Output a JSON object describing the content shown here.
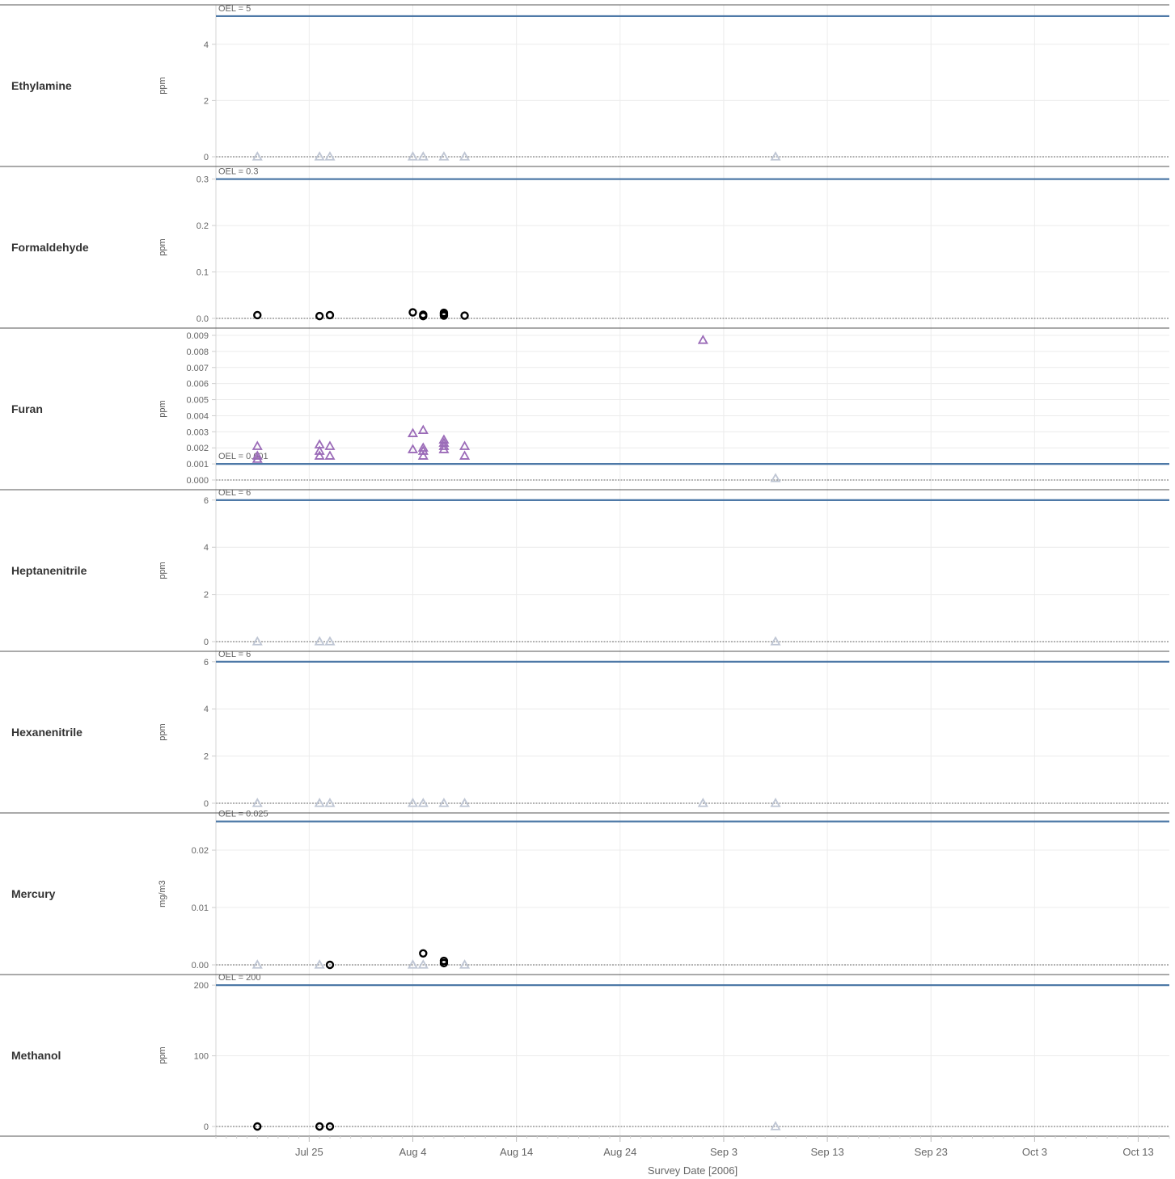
{
  "chart_data": {
    "type": "scatter",
    "xlabel": "Survey Date [2006]",
    "x_ticks": [
      "Jul 25",
      "Aug 4",
      "Aug 14",
      "Aug 24",
      "Sep 3",
      "Sep 13",
      "Sep 23",
      "Oct 3",
      "Oct 13"
    ],
    "xlim": [
      "2006-07-16",
      "2006-10-16"
    ],
    "grid": true,
    "colors": {
      "oel_line": "#4e79a7",
      "detect_circle": "#000000",
      "nondetect_triangle": "#bfc6d4",
      "exceed_triangle": "#9b6bb8"
    },
    "panels": [
      {
        "chemical": "Ethylamine",
        "unit": "ppm",
        "oel": 5,
        "oel_label": "OEL = 5",
        "ylim": [
          0,
          5.2
        ],
        "y_ticks": [
          "0",
          "2",
          "4"
        ],
        "y_tick_values": [
          0,
          2,
          4
        ],
        "points": [
          {
            "date": "2006-07-20",
            "value": 0,
            "marker": "nondetect"
          },
          {
            "date": "2006-07-26",
            "value": 0,
            "marker": "nondetect"
          },
          {
            "date": "2006-07-27",
            "value": 0,
            "marker": "nondetect"
          },
          {
            "date": "2006-08-04",
            "value": 0,
            "marker": "nondetect"
          },
          {
            "date": "2006-08-05",
            "value": 0,
            "marker": "nondetect"
          },
          {
            "date": "2006-08-07",
            "value": 0,
            "marker": "nondetect"
          },
          {
            "date": "2006-08-09",
            "value": 0,
            "marker": "nondetect"
          },
          {
            "date": "2006-09-08",
            "value": 0,
            "marker": "nondetect"
          }
        ]
      },
      {
        "chemical": "Formaldehyde",
        "unit": "ppm",
        "oel": 0.3,
        "oel_label": "OEL = 0.3",
        "ylim": [
          0,
          0.315
        ],
        "y_ticks": [
          "0.0",
          "0.1",
          "0.2",
          "0.3"
        ],
        "y_tick_values": [
          0,
          0.1,
          0.2,
          0.3
        ],
        "points": [
          {
            "date": "2006-07-20",
            "value": 0.007,
            "marker": "detect"
          },
          {
            "date": "2006-07-26",
            "value": 0.005,
            "marker": "detect"
          },
          {
            "date": "2006-07-27",
            "value": 0.007,
            "marker": "detect"
          },
          {
            "date": "2006-08-04",
            "value": 0.013,
            "marker": "detect"
          },
          {
            "date": "2006-08-05",
            "value": 0.008,
            "marker": "detect"
          },
          {
            "date": "2006-08-05",
            "value": 0.005,
            "marker": "detect"
          },
          {
            "date": "2006-08-07",
            "value": 0.012,
            "marker": "detect"
          },
          {
            "date": "2006-08-07",
            "value": 0.009,
            "marker": "detect"
          },
          {
            "date": "2006-08-07",
            "value": 0.006,
            "marker": "detect"
          },
          {
            "date": "2006-08-09",
            "value": 0.006,
            "marker": "detect"
          }
        ]
      },
      {
        "chemical": "Furan",
        "unit": "ppm",
        "oel": 0.001,
        "oel_label": "OEL = 0.001",
        "ylim": [
          0,
          0.0091
        ],
        "y_ticks": [
          "0.000",
          "0.001",
          "0.002",
          "0.003",
          "0.004",
          "0.005",
          "0.006",
          "0.007",
          "0.008",
          "0.009"
        ],
        "y_tick_values": [
          0,
          0.001,
          0.002,
          0.003,
          0.004,
          0.005,
          0.006,
          0.007,
          0.008,
          0.009
        ],
        "points": [
          {
            "date": "2006-07-20",
            "value": 0.0021,
            "marker": "exceed"
          },
          {
            "date": "2006-07-20",
            "value": 0.0015,
            "marker": "exceed"
          },
          {
            "date": "2006-07-20",
            "value": 0.0013,
            "marker": "exceed"
          },
          {
            "date": "2006-07-26",
            "value": 0.0022,
            "marker": "exceed"
          },
          {
            "date": "2006-07-26",
            "value": 0.0018,
            "marker": "exceed"
          },
          {
            "date": "2006-07-26",
            "value": 0.0015,
            "marker": "exceed"
          },
          {
            "date": "2006-07-27",
            "value": 0.0021,
            "marker": "exceed"
          },
          {
            "date": "2006-07-27",
            "value": 0.0015,
            "marker": "exceed"
          },
          {
            "date": "2006-08-04",
            "value": 0.0029,
            "marker": "exceed"
          },
          {
            "date": "2006-08-04",
            "value": 0.0019,
            "marker": "exceed"
          },
          {
            "date": "2006-08-05",
            "value": 0.0031,
            "marker": "exceed"
          },
          {
            "date": "2006-08-05",
            "value": 0.002,
            "marker": "exceed"
          },
          {
            "date": "2006-08-05",
            "value": 0.0018,
            "marker": "exceed"
          },
          {
            "date": "2006-08-05",
            "value": 0.0015,
            "marker": "exceed"
          },
          {
            "date": "2006-08-07",
            "value": 0.0025,
            "marker": "exceed"
          },
          {
            "date": "2006-08-07",
            "value": 0.0023,
            "marker": "exceed"
          },
          {
            "date": "2006-08-07",
            "value": 0.0021,
            "marker": "exceed"
          },
          {
            "date": "2006-08-07",
            "value": 0.0019,
            "marker": "exceed"
          },
          {
            "date": "2006-08-09",
            "value": 0.0021,
            "marker": "exceed"
          },
          {
            "date": "2006-08-09",
            "value": 0.0015,
            "marker": "exceed"
          },
          {
            "date": "2006-09-01",
            "value": 0.0087,
            "marker": "exceed"
          },
          {
            "date": "2006-09-08",
            "value": 0.0001,
            "marker": "nondetect"
          }
        ]
      },
      {
        "chemical": "Heptanenitrile",
        "unit": "ppm",
        "oel": 6,
        "oel_label": "OEL = 6",
        "ylim": [
          0,
          6.2
        ],
        "y_ticks": [
          "0",
          "2",
          "4",
          "6"
        ],
        "y_tick_values": [
          0,
          2,
          4,
          6
        ],
        "points": [
          {
            "date": "2006-07-20",
            "value": 0,
            "marker": "nondetect"
          },
          {
            "date": "2006-07-26",
            "value": 0,
            "marker": "nondetect"
          },
          {
            "date": "2006-07-27",
            "value": 0,
            "marker": "nondetect"
          },
          {
            "date": "2006-09-08",
            "value": 0,
            "marker": "nondetect"
          }
        ]
      },
      {
        "chemical": "Hexanenitrile",
        "unit": "ppm",
        "oel": 6,
        "oel_label": "OEL = 6",
        "ylim": [
          0,
          6.2
        ],
        "y_ticks": [
          "0",
          "2",
          "4",
          "6"
        ],
        "y_tick_values": [
          0,
          2,
          4,
          6
        ],
        "points": [
          {
            "date": "2006-07-20",
            "value": 0,
            "marker": "nondetect"
          },
          {
            "date": "2006-07-26",
            "value": 0,
            "marker": "nondetect"
          },
          {
            "date": "2006-07-27",
            "value": 0,
            "marker": "nondetect"
          },
          {
            "date": "2006-08-04",
            "value": 0,
            "marker": "nondetect"
          },
          {
            "date": "2006-08-05",
            "value": 0,
            "marker": "nondetect"
          },
          {
            "date": "2006-08-07",
            "value": 0,
            "marker": "nondetect"
          },
          {
            "date": "2006-08-09",
            "value": 0,
            "marker": "nondetect"
          },
          {
            "date": "2006-09-01",
            "value": 0,
            "marker": "nondetect"
          },
          {
            "date": "2006-09-08",
            "value": 0,
            "marker": "nondetect"
          }
        ]
      },
      {
        "chemical": "Mercury",
        "unit": "mg/m3",
        "oel": 0.025,
        "oel_label": "OEL = 0.025",
        "ylim": [
          0,
          0.0255
        ],
        "y_ticks": [
          "0.00",
          "0.01",
          "0.02"
        ],
        "y_tick_values": [
          0,
          0.01,
          0.02
        ],
        "points": [
          {
            "date": "2006-07-20",
            "value": 0,
            "marker": "nondetect"
          },
          {
            "date": "2006-07-26",
            "value": 0,
            "marker": "nondetect"
          },
          {
            "date": "2006-07-27",
            "value": 0,
            "marker": "detect"
          },
          {
            "date": "2006-08-04",
            "value": 0,
            "marker": "nondetect"
          },
          {
            "date": "2006-08-05",
            "value": 0,
            "marker": "nondetect"
          },
          {
            "date": "2006-08-05",
            "value": 0.002,
            "marker": "detect"
          },
          {
            "date": "2006-08-07",
            "value": 0.0007,
            "marker": "detect"
          },
          {
            "date": "2006-08-07",
            "value": 0.0003,
            "marker": "detect"
          },
          {
            "date": "2006-08-09",
            "value": 0,
            "marker": "nondetect"
          }
        ]
      },
      {
        "chemical": "Methanol",
        "unit": "ppm",
        "oel": 200,
        "oel_label": "OEL = 200",
        "ylim": [
          0,
          207
        ],
        "y_ticks": [
          "0",
          "100",
          "200"
        ],
        "y_tick_values": [
          0,
          100,
          200
        ],
        "points": [
          {
            "date": "2006-07-20",
            "value": 0,
            "marker": "detect"
          },
          {
            "date": "2006-07-26",
            "value": 0,
            "marker": "detect"
          },
          {
            "date": "2006-07-27",
            "value": 0,
            "marker": "detect"
          },
          {
            "date": "2006-09-08",
            "value": 0,
            "marker": "nondetect"
          }
        ]
      }
    ]
  }
}
